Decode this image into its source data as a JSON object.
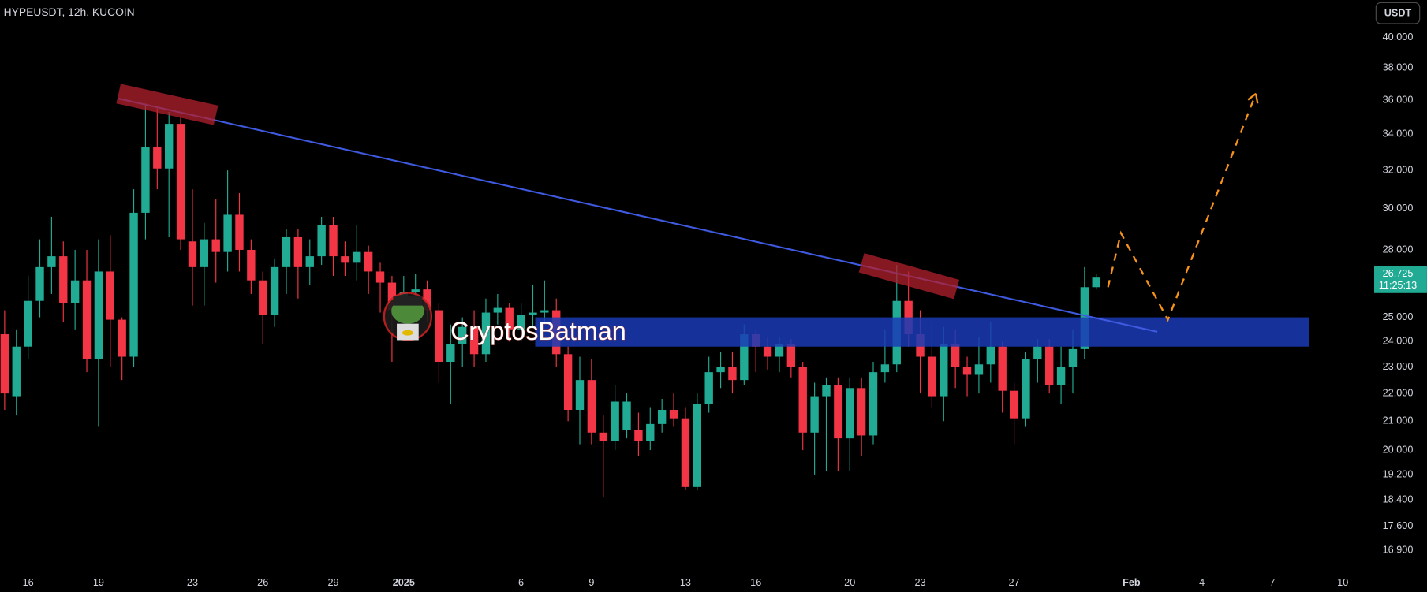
{
  "chart_data": {
    "type": "candlestick",
    "symbol": "HYPEUSDT, 12h, KUCOIN",
    "currency": "USDT",
    "watermark": "CryptosBatman",
    "countdown": "11:25:13",
    "log_scale": true,
    "up_color": "#22ab94",
    "down_color": "#f23645",
    "open": [
      24.3,
      21.9,
      23.8,
      25.7,
      27.2,
      27.7,
      25.6,
      26.6,
      23.3,
      27,
      24.9,
      23.4,
      29.8,
      33.3,
      32.1,
      34.6,
      28.4,
      27.2,
      28.5,
      27.9,
      29.7,
      28,
      26.6,
      25.1,
      27.2,
      28.6,
      27.2,
      27.7,
      29.2,
      27.7,
      27.4,
      27.9,
      27,
      26.5,
      25.3,
      26.1,
      26.2,
      25.3,
      23.2,
      23.9,
      24.6,
      23.5,
      25.2,
      25.4,
      24.5,
      25.1,
      25.2,
      25.3,
      23.5,
      21.4,
      22.5,
      20.6,
      20.3,
      20.7,
      20.7,
      20.3,
      20.9,
      21.4,
      21.1,
      18.8,
      21.6,
      22.8,
      23,
      22.5,
      24.3,
      23.8,
      23.4,
      23.9,
      23,
      20.6,
      21.9,
      22.3,
      20.4,
      22.2,
      20.5,
      22.8,
      23.1,
      25.7,
      24.3,
      23.4,
      21.9,
      23.9,
      23,
      22.7,
      23.1,
      23.8,
      22.1,
      21.1,
      23.3,
      23.8,
      22.3,
      23,
      23.7,
      26.3
    ],
    "high": [
      25.3,
      24.5,
      26.8,
      28.5,
      29.6,
      28.4,
      28,
      28,
      28.5,
      28.7,
      25,
      31,
      35.8,
      35.5,
      35.3,
      35,
      31,
      29.3,
      30.5,
      32,
      30.8,
      28.5,
      27,
      27.6,
      29,
      29,
      28.5,
      29.6,
      29.6,
      28.4,
      29.2,
      28.2,
      27.4,
      26.8,
      26.8,
      26.9,
      26.6,
      25.6,
      24.7,
      25,
      25.3,
      25.8,
      26,
      25.6,
      25.6,
      26.4,
      26.6,
      25.8,
      23.8,
      23.4,
      23.3,
      21.2,
      22.3,
      22,
      21.3,
      21.5,
      21.8,
      22,
      21.5,
      22,
      23.4,
      23.6,
      23.6,
      24.7,
      24.5,
      24.2,
      24.2,
      24.1,
      23.2,
      22.4,
      22.6,
      22.6,
      22.6,
      22.6,
      23.2,
      24.5,
      27.3,
      27,
      25.3,
      24.8,
      24.6,
      24.5,
      23.4,
      24.2,
      24.8,
      24,
      22.4,
      23.6,
      24.1,
      24.1,
      23.8,
      24.5,
      27.2,
      26.9
    ],
    "low": [
      21.4,
      21.2,
      23.3,
      25,
      26,
      24.8,
      24.5,
      22.8,
      20.8,
      23,
      22.5,
      23,
      28.5,
      31,
      28.6,
      28,
      25.5,
      25.5,
      26.5,
      27,
      27,
      26,
      23.9,
      24.6,
      26,
      25.8,
      26.4,
      27.3,
      26.8,
      26.8,
      26.6,
      26,
      25.2,
      23.2,
      24.5,
      25,
      24.8,
      22.4,
      21.6,
      23,
      23,
      23.2,
      24.7,
      24,
      24,
      24.6,
      24.7,
      23,
      21,
      20.2,
      20.2,
      18.5,
      20,
      20.4,
      19.8,
      20,
      20.6,
      20.8,
      18.7,
      18.7,
      21.3,
      22.2,
      22,
      22.3,
      22.8,
      22.9,
      22.8,
      22.6,
      20,
      19.2,
      19.3,
      19.3,
      19.3,
      19.8,
      20.2,
      22.4,
      22.8,
      23.8,
      22,
      21.5,
      21,
      22.2,
      21.9,
      22,
      22.4,
      21.3,
      20.2,
      20.8,
      22.4,
      22,
      21.6,
      22,
      23.3,
      26.2
    ],
    "close": [
      22.0,
      23.8,
      25.7,
      27.2,
      27.7,
      25.6,
      26.6,
      23.3,
      27,
      24.9,
      23.4,
      29.8,
      33.3,
      32.1,
      34.6,
      28.5,
      27.2,
      28.5,
      27.9,
      29.7,
      28,
      26.6,
      25.1,
      27.2,
      28.6,
      27.2,
      27.7,
      29.2,
      27.7,
      27.4,
      27.9,
      27,
      26.5,
      25.3,
      26.1,
      26.2,
      25.3,
      23.2,
      23.9,
      24.6,
      23.5,
      25.2,
      25.4,
      24.5,
      25.1,
      25.2,
      25.3,
      23.5,
      21.4,
      22.5,
      20.6,
      20.3,
      21.7,
      21.7,
      20.3,
      20.9,
      21.4,
      21.1,
      18.8,
      21.6,
      22.8,
      23,
      22.5,
      24.3,
      23.8,
      23.4,
      23.9,
      23,
      20.6,
      21.9,
      22.3,
      20.4,
      22.2,
      20.5,
      22.8,
      23.1,
      25.7,
      24.3,
      23.4,
      21.9,
      23.9,
      23,
      22.7,
      23.1,
      23.8,
      22.1,
      21.1,
      23.3,
      23.8,
      22.3,
      23,
      23.7,
      26.3,
      26.725
    ],
    "xlim": [
      -0.39,
      115.9
    ],
    "xticks": [
      {
        "value": 2,
        "label": "16"
      },
      {
        "value": 8,
        "label": "19"
      },
      {
        "value": 16,
        "label": "23"
      },
      {
        "value": 22,
        "label": "26"
      },
      {
        "value": 28,
        "label": "29"
      },
      {
        "value": 34,
        "label": "2025"
      },
      {
        "value": 44,
        "label": "6"
      },
      {
        "value": 50,
        "label": "9"
      },
      {
        "value": 58,
        "label": "13"
      },
      {
        "value": 64,
        "label": "16"
      },
      {
        "value": 72,
        "label": "20"
      },
      {
        "value": 78,
        "label": "23"
      },
      {
        "value": 86,
        "label": "27"
      },
      {
        "value": 96,
        "label": "Feb"
      },
      {
        "value": 102,
        "label": "4"
      },
      {
        "value": 108,
        "label": "7"
      },
      {
        "value": 114,
        "label": "10"
      }
    ],
    "ylim": [
      16.4,
      42.6
    ],
    "yticks": [
      {
        "value": 40,
        "label": "40.000"
      },
      {
        "value": 38,
        "label": "38.000"
      },
      {
        "value": 36,
        "label": "36.000"
      },
      {
        "value": 34,
        "label": "34.000"
      },
      {
        "value": 32,
        "label": "32.000"
      },
      {
        "value": 30,
        "label": "30.000"
      },
      {
        "value": 28,
        "label": "28.000"
      },
      {
        "value": 25,
        "label": "25.000"
      },
      {
        "value": 24,
        "label": "24.000"
      },
      {
        "value": 23,
        "label": "23.000"
      },
      {
        "value": 22,
        "label": "22.000"
      },
      {
        "value": 21,
        "label": "21.000"
      },
      {
        "value": 20,
        "label": "20.000"
      },
      {
        "value": 19.2,
        "label": "19.200"
      },
      {
        "value": 18.4,
        "label": "18.400"
      },
      {
        "value": 17.6,
        "label": "17.600"
      },
      {
        "value": 16.9,
        "label": "16.900"
      }
    ],
    "zone": {
      "color": "#1a3bb5",
      "x": [
        45.2,
        111.1
      ],
      "y": [
        23.8,
        25.0
      ]
    },
    "trendline": {
      "color": "#3f5ae0",
      "points": [
        [
          9.7,
          36.1
        ],
        [
          98.2,
          24.4
        ]
      ]
    },
    "highlights": {
      "color": "#b3202e",
      "segments": [
        [
          [
            9.7,
            36.4
          ],
          [
            18,
            35.1
          ]
        ],
        [
          [
            73,
            27.4
          ],
          [
            81.1,
            26.2
          ]
        ]
      ]
    },
    "projection": {
      "color": "#f7931a",
      "points": [
        [
          94,
          26.3
        ],
        [
          95.1,
          28.8
        ],
        [
          99.1,
          24.9
        ],
        [
          106.6,
          36.4
        ]
      ]
    }
  }
}
